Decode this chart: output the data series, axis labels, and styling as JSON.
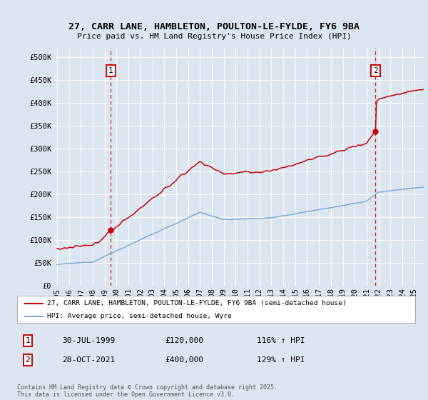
{
  "title_line1": "27, CARR LANE, HAMBLETON, POULTON-LE-FYLDE, FY6 9BA",
  "title_line2": "Price paid vs. HM Land Registry's House Price Index (HPI)",
  "bg_color": "#dce6f1",
  "grid_color": "#ffffff",
  "red_color": "#cc0000",
  "blue_color": "#7aaddb",
  "marker1_label": "1",
  "marker1_date": "30-JUL-1999",
  "marker1_price": 120000,
  "marker1_hpi": "116% ↑ HPI",
  "marker2_label": "2",
  "marker2_date": "28-OCT-2021",
  "marker2_price": 400000,
  "marker2_hpi": "129% ↑ HPI",
  "legend_label_red": "27, CARR LANE, HAMBLETON, POULTON-LE-FYLDE, FY6 9BA (semi-detached house)",
  "legend_label_blue": "HPI: Average price, semi-detached house, Wyre",
  "footer": "Contains HM Land Registry data © Crown copyright and database right 2025.\nThis data is licensed under the Open Government Licence v3.0.",
  "ylim": [
    0,
    520000
  ],
  "yticks": [
    0,
    50000,
    100000,
    150000,
    200000,
    250000,
    300000,
    350000,
    400000,
    450000,
    500000
  ],
  "ytick_labels": [
    "£0",
    "£50K",
    "£100K",
    "£150K",
    "£200K",
    "£250K",
    "£300K",
    "£350K",
    "£400K",
    "£450K",
    "£500K"
  ],
  "year_start": 1995,
  "year_end": 2025
}
